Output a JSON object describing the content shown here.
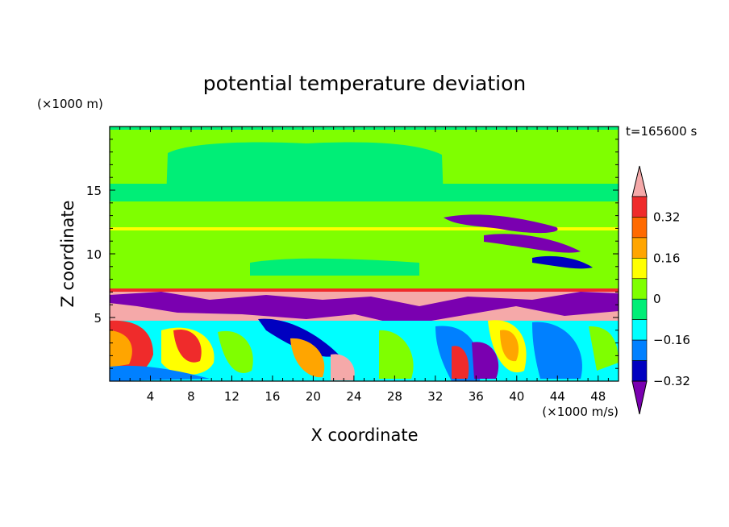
{
  "chart_data": {
    "type": "heatmap",
    "title": "potential temperature deviation",
    "xlabel": "X coordinate",
    "ylabel": "Z coordinate",
    "x_unit": "(×1000 m/s)",
    "y_unit": "(×1000 m)",
    "time_label": "t=165600 s",
    "xlim": [
      0,
      50
    ],
    "ylim": [
      0,
      20
    ],
    "x_ticks": [
      "4",
      "8",
      "12",
      "16",
      "20",
      "24",
      "28",
      "32",
      "36",
      "40",
      "44",
      "48"
    ],
    "y_ticks": [
      "5",
      "10",
      "15"
    ],
    "colorbar": {
      "levels": [
        -0.4,
        -0.32,
        -0.24,
        -0.16,
        -0.08,
        0,
        0.08,
        0.16,
        0.24,
        0.32,
        0.4
      ],
      "tick_labels": [
        "0.32",
        "0.16",
        "0",
        "−0.16",
        "−0.32"
      ],
      "colors": [
        "#f5a9a9",
        "#ef2b2b",
        "#ff6a00",
        "#ffa500",
        "#ffff00",
        "#7fff00",
        "#00ee77",
        "#00ffff",
        "#0080ff",
        "#0000c0",
        "#7a00b0"
      ]
    },
    "colors": {
      "background_field": "#7fff00",
      "upper_band": "#00ee77",
      "warm_layer": "#f5a9a9",
      "cold_layer": "#7a00b0",
      "mid": "#00ffff",
      "blue": "#0080ff",
      "navy": "#0000c0",
      "yellow": "#ffff00",
      "orange": "#ffa500",
      "red": "#ef2b2b"
    }
  }
}
